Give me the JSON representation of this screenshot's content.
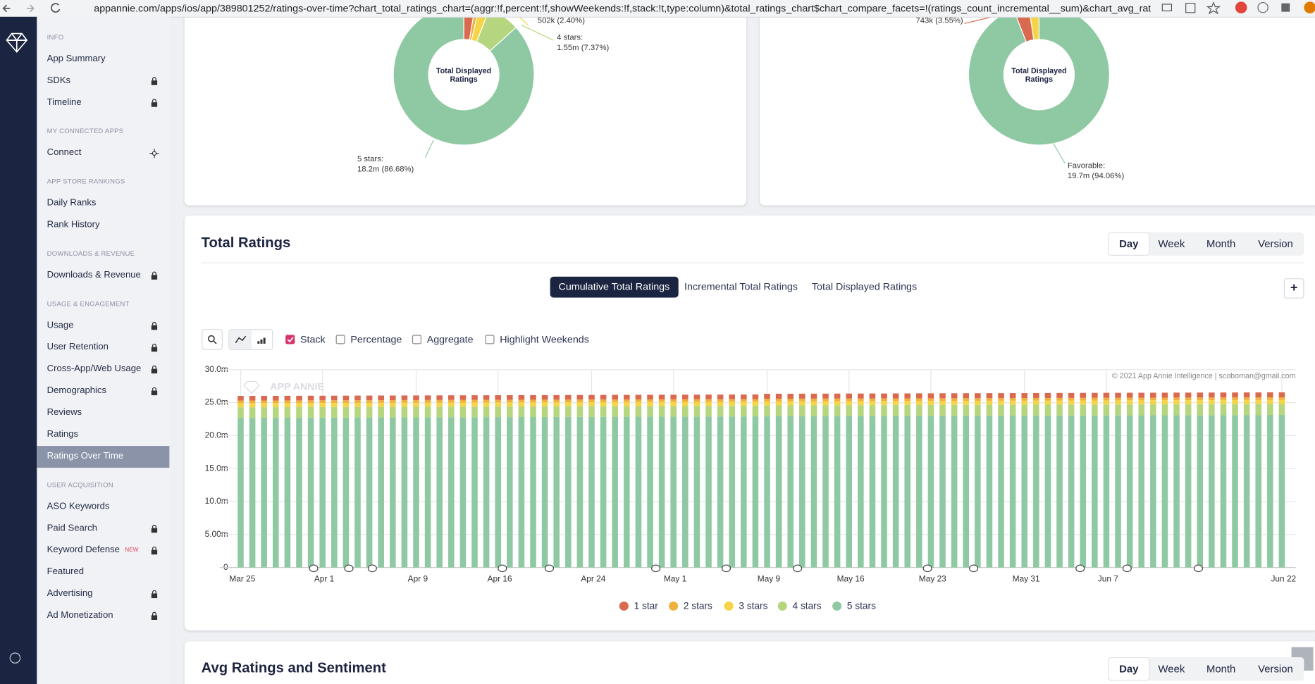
{
  "browser": {
    "url": "appannie.com/apps/ios/app/389801252/ratings-over-time?chart_total_ratings_chart=(aggr:!f,percent:!f,showWeekends:!f,stack:!t,type:column)&total_ratings_chart$chart_compare_facets=!(ratings_count_incremental__sum)&chart_avg_ratings_s..."
  },
  "sidebar": {
    "sections": [
      {
        "title": "INFO",
        "items": [
          {
            "label": "App Summary"
          },
          {
            "label": "SDKs",
            "icon": "lock"
          },
          {
            "label": "Timeline",
            "icon": "lock"
          }
        ]
      },
      {
        "title": "MY CONNECTED APPS",
        "items": [
          {
            "label": "Connect",
            "icon": "connect"
          }
        ]
      },
      {
        "title": "APP STORE RANKINGS",
        "items": [
          {
            "label": "Daily Ranks"
          },
          {
            "label": "Rank History"
          }
        ]
      },
      {
        "title": "DOWNLOADS & REVENUE",
        "items": [
          {
            "label": "Downloads & Revenue",
            "icon": "lock"
          }
        ]
      },
      {
        "title": "USAGE & ENGAGEMENT",
        "items": [
          {
            "label": "Usage",
            "icon": "lock"
          },
          {
            "label": "User Retention",
            "icon": "lock"
          },
          {
            "label": "Cross-App/Web Usage",
            "icon": "lock"
          },
          {
            "label": "Demographics",
            "icon": "lock"
          },
          {
            "label": "Reviews"
          },
          {
            "label": "Ratings"
          },
          {
            "label": "Ratings Over Time",
            "active": true
          }
        ]
      },
      {
        "title": "USER ACQUISITION",
        "items": [
          {
            "label": "ASO Keywords"
          },
          {
            "label": "Paid Search",
            "icon": "lock"
          },
          {
            "label": "Keyword Defense",
            "badge": "NEW",
            "icon": "lock"
          },
          {
            "label": "Featured"
          },
          {
            "label": "Advertising",
            "icon": "lock"
          },
          {
            "label": "Ad Monetization",
            "icon": "lock"
          }
        ]
      }
    ]
  },
  "donuts": [
    {
      "center_label": [
        "Total Displayed",
        "Ratings"
      ],
      "slices": [
        {
          "value": 2.6,
          "color": "#d9694f"
        },
        {
          "value": 0.95,
          "color": "#f0b040"
        },
        {
          "value": 2.4,
          "color": "#f5d547",
          "label": "502k (2.40%)"
        },
        {
          "value": 7.37,
          "color": "#b5d67f",
          "name": "4 stars:",
          "label": "1.55m (7.37%)"
        },
        {
          "value": 86.68,
          "color": "#8fc9a3",
          "name": "5 stars:",
          "label": "18.2m (86.68%)"
        }
      ]
    },
    {
      "center_label": [
        "Total Displayed",
        "Ratings"
      ],
      "slices": [
        {
          "value": 94.06,
          "color": "#8fc9a3",
          "name": "Favorable:",
          "label": "19.7m (94.06%)"
        },
        {
          "value": 3.55,
          "color": "#d9694f",
          "label": "743k (3.55%)"
        },
        {
          "value": 2.39,
          "color": "#f5d547"
        }
      ]
    }
  ],
  "total_ratings": {
    "title": "Total Ratings",
    "periods": [
      {
        "label": "Day",
        "selected": true
      },
      {
        "label": "Week"
      },
      {
        "label": "Month"
      },
      {
        "label": "Version"
      }
    ],
    "views": [
      {
        "label": "Cumulative Total Ratings",
        "selected": true
      },
      {
        "label": "Incremental Total Ratings"
      },
      {
        "label": "Total Displayed Ratings"
      }
    ],
    "add_button": "+",
    "options": [
      {
        "label": "Stack",
        "checked": true
      },
      {
        "label": "Percentage"
      },
      {
        "label": "Aggregate"
      },
      {
        "label": "Highlight Weekends"
      }
    ],
    "chart_data": {
      "type": "bar",
      "stacked": true,
      "watermark": "APP ANNIE",
      "credit": "© 2021 App Annie Intelligence | scoboman@gmail.com",
      "ylim": [
        0,
        30
      ],
      "yticks": [
        0,
        {
          "value": 5,
          "label": "5.00m"
        },
        {
          "value": 10,
          "label": "10.0m"
        },
        {
          "value": 15,
          "label": "15.0m"
        },
        {
          "value": 20,
          "label": "20.0m"
        },
        {
          "value": 25,
          "label": "25.0m"
        },
        {
          "value": 30,
          "label": "30.0m"
        }
      ],
      "grid": true,
      "categories": [
        "Mar 25",
        null,
        null,
        null,
        null,
        null,
        null,
        "Apr 1",
        null,
        null,
        null,
        null,
        null,
        null,
        null,
        "Apr 9",
        null,
        null,
        null,
        null,
        null,
        null,
        "Apr 16",
        null,
        null,
        null,
        null,
        null,
        null,
        null,
        "Apr 24",
        null,
        null,
        null,
        null,
        null,
        null,
        "May 1",
        null,
        null,
        null,
        null,
        null,
        null,
        null,
        "May 9",
        null,
        null,
        null,
        null,
        null,
        null,
        "May 16",
        null,
        null,
        null,
        null,
        null,
        null,
        "May 23",
        null,
        null,
        null,
        null,
        null,
        null,
        null,
        "May 31",
        null,
        null,
        null,
        null,
        null,
        null,
        "Jun 7",
        null,
        null,
        null,
        null,
        null,
        null,
        null,
        null,
        null,
        null,
        null,
        null,
        null,
        null,
        "Jun 22"
      ],
      "series": [
        {
          "name": "1 star",
          "color": "#d9694f",
          "values": [
            0.7,
            0.7,
            0.7,
            0.7,
            0.7,
            0.7,
            0.7,
            0.7,
            0.7,
            0.7,
            0.7,
            0.7,
            0.7,
            0.7,
            0.7,
            0.7,
            0.7,
            0.7,
            0.7,
            0.7,
            0.7,
            0.7,
            0.7,
            0.7,
            0.7,
            0.7,
            0.7,
            0.7,
            0.7,
            0.7,
            0.7,
            0.7,
            0.7,
            0.7,
            0.7,
            0.7,
            0.7,
            0.7,
            0.7,
            0.7,
            0.7,
            0.7,
            0.7,
            0.7,
            0.7,
            0.75,
            0.75,
            0.75,
            0.75,
            0.75,
            0.75,
            0.75,
            0.75,
            0.75,
            0.75,
            0.75,
            0.75,
            0.75,
            0.75,
            0.75,
            0.75,
            0.75,
            0.75,
            0.75,
            0.75,
            0.75,
            0.75,
            0.75,
            0.75,
            0.75,
            0.75,
            0.75,
            0.75,
            0.75,
            0.75,
            0.75,
            0.75,
            0.75,
            0.75,
            0.75,
            0.75,
            0.75,
            0.75,
            0.75,
            0.75,
            0.75,
            0.75,
            0.75,
            0.75,
            0.75
          ]
        },
        {
          "name": "2 stars",
          "color": "#f0b040",
          "values": [
            0.4,
            0.4,
            0.4,
            0.4,
            0.4,
            0.4,
            0.4,
            0.4,
            0.4,
            0.4,
            0.4,
            0.4,
            0.4,
            0.4,
            0.4,
            0.4,
            0.4,
            0.4,
            0.4,
            0.4,
            0.4,
            0.4,
            0.4,
            0.4,
            0.4,
            0.4,
            0.4,
            0.4,
            0.4,
            0.4,
            0.4,
            0.4,
            0.4,
            0.4,
            0.4,
            0.4,
            0.4,
            0.4,
            0.4,
            0.4,
            0.4,
            0.4,
            0.4,
            0.4,
            0.4,
            0.4,
            0.4,
            0.4,
            0.4,
            0.4,
            0.4,
            0.4,
            0.4,
            0.4,
            0.4,
            0.4,
            0.4,
            0.4,
            0.4,
            0.4,
            0.4,
            0.4,
            0.4,
            0.4,
            0.4,
            0.4,
            0.4,
            0.4,
            0.4,
            0.4,
            0.4,
            0.4,
            0.4,
            0.4,
            0.4,
            0.4,
            0.4,
            0.4,
            0.4,
            0.4,
            0.4,
            0.4,
            0.4,
            0.4,
            0.4,
            0.4,
            0.4,
            0.4,
            0.4,
            0.4
          ]
        },
        {
          "name": "3 stars",
          "color": "#f5d547",
          "values": [
            0.62,
            0.62,
            0.62,
            0.62,
            0.62,
            0.62,
            0.62,
            0.62,
            0.62,
            0.62,
            0.62,
            0.62,
            0.62,
            0.62,
            0.62,
            0.62,
            0.62,
            0.62,
            0.62,
            0.62,
            0.62,
            0.62,
            0.62,
            0.62,
            0.62,
            0.62,
            0.62,
            0.62,
            0.62,
            0.62,
            0.62,
            0.62,
            0.62,
            0.62,
            0.62,
            0.62,
            0.62,
            0.62,
            0.62,
            0.62,
            0.62,
            0.62,
            0.62,
            0.62,
            0.62,
            0.62,
            0.62,
            0.62,
            0.62,
            0.62,
            0.62,
            0.62,
            0.62,
            0.62,
            0.62,
            0.62,
            0.62,
            0.62,
            0.62,
            0.62,
            0.62,
            0.62,
            0.62,
            0.62,
            0.62,
            0.62,
            0.62,
            0.62,
            0.62,
            0.62,
            0.62,
            0.62,
            0.62,
            0.62,
            0.62,
            0.62,
            0.62,
            0.62,
            0.62,
            0.62,
            0.62,
            0.62,
            0.62,
            0.62,
            0.62,
            0.62,
            0.62,
            0.62,
            0.62,
            0.62
          ]
        },
        {
          "name": "4 stars",
          "color": "#b5d67f",
          "values": [
            1.6,
            1.6,
            1.6,
            1.6,
            1.6,
            1.6,
            1.6,
            1.6,
            1.6,
            1.6,
            1.6,
            1.6,
            1.6,
            1.6,
            1.6,
            1.6,
            1.6,
            1.6,
            1.6,
            1.6,
            1.6,
            1.6,
            1.6,
            1.6,
            1.6,
            1.6,
            1.6,
            1.6,
            1.6,
            1.6,
            1.6,
            1.6,
            1.6,
            1.6,
            1.6,
            1.6,
            1.6,
            1.6,
            1.6,
            1.6,
            1.6,
            1.6,
            1.6,
            1.6,
            1.6,
            1.65,
            1.65,
            1.65,
            1.65,
            1.65,
            1.65,
            1.65,
            1.65,
            1.65,
            1.65,
            1.65,
            1.65,
            1.65,
            1.65,
            1.65,
            1.65,
            1.65,
            1.65,
            1.65,
            1.65,
            1.65,
            1.65,
            1.65,
            1.65,
            1.65,
            1.65,
            1.65,
            1.65,
            1.65,
            1.65,
            1.65,
            1.65,
            1.65,
            1.65,
            1.65,
            1.65,
            1.65,
            1.65,
            1.65,
            1.65,
            1.65,
            1.65,
            1.65,
            1.65,
            1.65
          ]
        },
        {
          "name": "5 stars",
          "color": "#8fc9a3",
          "values": [
            22.7,
            22.7,
            22.71,
            22.71,
            22.72,
            22.72,
            22.73,
            22.73,
            22.74,
            22.74,
            22.75,
            22.75,
            22.76,
            22.76,
            22.77,
            22.77,
            22.78,
            22.78,
            22.79,
            22.79,
            22.8,
            22.8,
            22.81,
            22.81,
            22.82,
            22.82,
            22.83,
            22.83,
            22.84,
            22.84,
            22.85,
            22.85,
            22.86,
            22.86,
            22.87,
            22.87,
            22.88,
            22.88,
            22.89,
            22.89,
            22.9,
            22.9,
            22.91,
            22.91,
            22.92,
            22.92,
            22.93,
            22.93,
            22.94,
            22.94,
            22.95,
            22.95,
            22.96,
            22.96,
            22.97,
            22.97,
            22.98,
            22.98,
            22.99,
            22.99,
            23.0,
            23.0,
            23.01,
            23.01,
            23.02,
            23.02,
            23.03,
            23.03,
            23.04,
            23.04,
            23.05,
            23.05,
            23.06,
            23.06,
            23.07,
            23.07,
            23.08,
            23.08,
            23.09,
            23.09,
            23.1,
            23.1,
            23.11,
            23.11,
            23.12,
            23.12,
            23.13,
            23.13,
            23.14,
            23.14
          ]
        }
      ]
    }
  },
  "avg_ratings": {
    "title": "Avg Ratings and Sentiment",
    "periods": [
      {
        "label": "Day",
        "selected": true
      },
      {
        "label": "Week"
      },
      {
        "label": "Month"
      },
      {
        "label": "Version"
      }
    ]
  }
}
